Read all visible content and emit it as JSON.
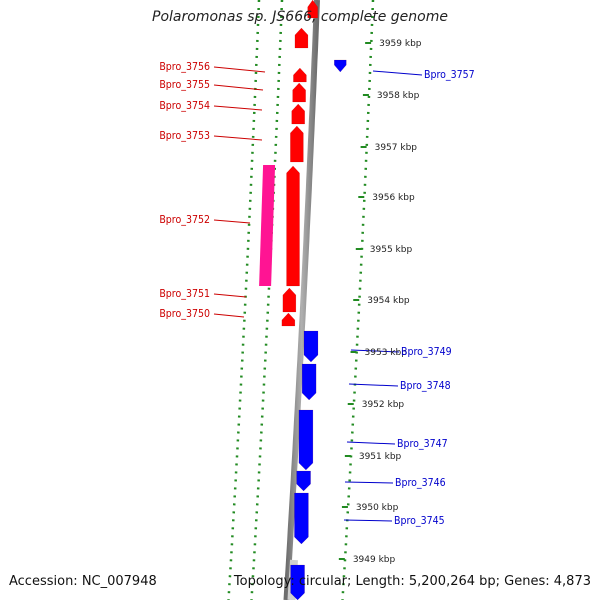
{
  "title": "Polaromonas sp. JS666, complete genome",
  "footer": {
    "accession": "Accession: NC_007948",
    "topology": "Topology: circular; Length: 5,200,264 bp; Genes: 4,873"
  },
  "colors": {
    "forward_gene": "#ff0000",
    "forward_gene_alt": "#ff1493",
    "reverse_gene": "#0000ff",
    "forward_label": "#cc0000",
    "reverse_label": "#0000cc",
    "backbone": "#888888",
    "ticks": "#228b22"
  },
  "kbp_ticks": [
    "3959 kbp",
    "3958 kbp",
    "3957 kbp",
    "3956 kbp",
    "3955 kbp",
    "3954 kbp",
    "3953 kbp",
    "3952 kbp",
    "3951 kbp",
    "3950 kbp",
    "3949 kbp"
  ],
  "genes": {
    "forward": [
      "Bpro_3756",
      "Bpro_3755",
      "Bpro_3754",
      "Bpro_3753",
      "Bpro_3752",
      "Bpro_3751",
      "Bpro_3750"
    ],
    "reverse": [
      "Bpro_3757",
      "Bpro_3749",
      "Bpro_3748",
      "Bpro_3747",
      "Bpro_3746",
      "Bpro_3745"
    ]
  }
}
